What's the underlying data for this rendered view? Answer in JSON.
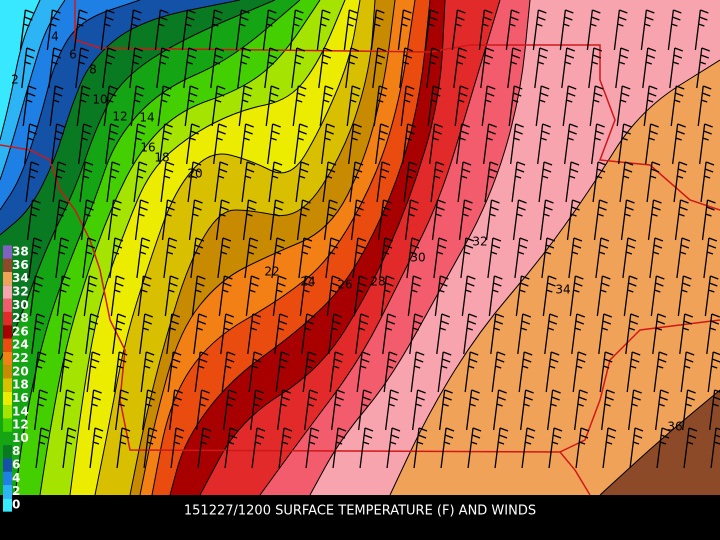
{
  "title": "151227/1200 SURFACE TEMPERATURE (F) AND WINDS",
  "colorbar": {
    "labels": [
      "0",
      "2",
      "4",
      "6",
      "8",
      "10",
      "12",
      "14",
      "16",
      "18",
      "20",
      "22",
      "24",
      "26",
      "28",
      "30",
      "32",
      "34",
      "36",
      "38"
    ],
    "colors": [
      "#38e8ff",
      "#2cb4f4",
      "#1e80e4",
      "#1452a8",
      "#0a7a22",
      "#14a414",
      "#44d000",
      "#a4e400",
      "#ecec00",
      "#d8c000",
      "#c88a00",
      "#f28014",
      "#ea4c10",
      "#a80000",
      "#e22a2a",
      "#f25c6c",
      "#f8a4ae",
      "#f0a258",
      "#8c4a28",
      "#8060c0"
    ]
  },
  "contour_labels": [
    "2",
    "4",
    "6",
    "8",
    "10",
    "12",
    "14",
    "16",
    "18",
    "20",
    "22",
    "24",
    "26",
    "28",
    "30",
    "32",
    "34",
    "36"
  ]
}
